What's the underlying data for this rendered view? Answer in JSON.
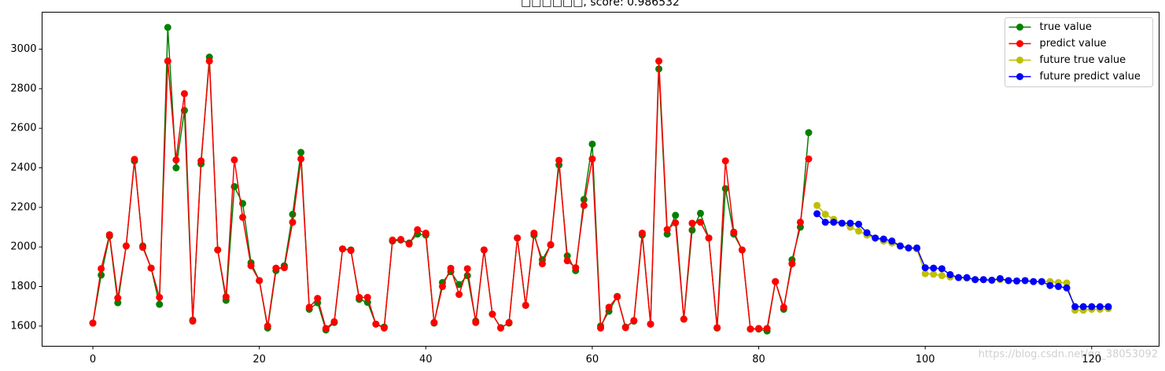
{
  "chart_data": {
    "type": "line",
    "title": "□□□□□□, score: 0.986532",
    "annotation": "https://blog.csdn.net/qq_38053092",
    "xlim": [
      -6.1,
      128.1
    ],
    "xticks": [
      0,
      20,
      40,
      60,
      80,
      100,
      120
    ],
    "ylim": [
      1498,
      3187
    ],
    "yticks": [
      1600,
      1800,
      2000,
      2200,
      2400,
      2600,
      2800,
      3000
    ],
    "grid": false,
    "legend": "upper right",
    "series": [
      {
        "name": "true value",
        "color": "#008000",
        "x": [
          0,
          1,
          2,
          3,
          4,
          5,
          6,
          7,
          8,
          9,
          10,
          11,
          12,
          13,
          14,
          15,
          16,
          17,
          18,
          19,
          20,
          21,
          22,
          23,
          24,
          25,
          26,
          27,
          28,
          29,
          30,
          31,
          32,
          33,
          34,
          35,
          36,
          37,
          38,
          39,
          40,
          41,
          42,
          43,
          44,
          45,
          46,
          47,
          48,
          49,
          50,
          51,
          52,
          53,
          54,
          55,
          56,
          57,
          58,
          59,
          60,
          61,
          62,
          63,
          64,
          65,
          66,
          67,
          68,
          69,
          70,
          71,
          72,
          73,
          74,
          75,
          76,
          77,
          78,
          79,
          80,
          81,
          82,
          83,
          84,
          85,
          86
        ],
        "values": [
          1615,
          1858,
          2055,
          1718,
          2005,
          2435,
          2005,
          1893,
          1710,
          3110,
          2400,
          2690,
          1630,
          2420,
          2960,
          1985,
          1730,
          2305,
          2220,
          1920,
          1830,
          1590,
          1880,
          1905,
          2165,
          2478,
          1685,
          1718,
          1580,
          1618,
          1990,
          1985,
          1735,
          1720,
          1610,
          1595,
          2030,
          2035,
          2020,
          2065,
          2060,
          1615,
          1820,
          1875,
          1810,
          1855,
          1625,
          1985,
          1660,
          1592,
          1615,
          2045,
          1705,
          2060,
          1935,
          2010,
          2415,
          1955,
          1880,
          2240,
          2520,
          1600,
          1675,
          1750,
          1595,
          1625,
          2060,
          1610,
          2900,
          2065,
          2160,
          1635,
          2085,
          2170,
          2045,
          1590,
          2295,
          2065,
          1985,
          1585,
          1585,
          1575,
          1825,
          1685,
          1935,
          2100,
          2578
        ]
      },
      {
        "name": "predict value",
        "color": "#ff0000",
        "x": [
          0,
          1,
          2,
          3,
          4,
          5,
          6,
          7,
          8,
          9,
          10,
          11,
          12,
          13,
          14,
          15,
          16,
          17,
          18,
          19,
          20,
          21,
          22,
          23,
          24,
          25,
          26,
          27,
          28,
          29,
          30,
          31,
          32,
          33,
          34,
          35,
          36,
          37,
          38,
          39,
          40,
          41,
          42,
          43,
          44,
          45,
          46,
          47,
          48,
          49,
          50,
          51,
          52,
          53,
          54,
          55,
          56,
          57,
          58,
          59,
          60,
          61,
          62,
          63,
          64,
          65,
          66,
          67,
          68,
          69,
          70,
          71,
          72,
          73,
          74,
          75,
          76,
          77,
          78,
          79,
          80,
          81,
          82,
          83,
          84,
          85,
          86
        ],
        "values": [
          1615,
          1890,
          2062,
          1742,
          2005,
          2443,
          1998,
          1893,
          1745,
          2940,
          2440,
          2775,
          1625,
          2435,
          2940,
          1985,
          1748,
          2440,
          2150,
          1905,
          1830,
          1600,
          1893,
          1895,
          2125,
          2445,
          1695,
          1740,
          1588,
          1622,
          1990,
          1982,
          1745,
          1745,
          1610,
          1590,
          2035,
          2038,
          2015,
          2087,
          2070,
          1618,
          1800,
          1892,
          1760,
          1890,
          1618,
          1985,
          1660,
          1590,
          1618,
          2045,
          1705,
          2070,
          1915,
          2012,
          2438,
          1930,
          1895,
          2210,
          2445,
          1590,
          1695,
          1748,
          1592,
          1628,
          2070,
          1610,
          2940,
          2088,
          2122,
          1635,
          2120,
          2125,
          2045,
          1592,
          2435,
          2075,
          1985,
          1585,
          1588,
          1588,
          1825,
          1695,
          1915,
          2125,
          2445
        ]
      },
      {
        "name": "future true value",
        "color": "#bfbf00",
        "x": [
          87,
          88,
          89,
          90,
          91,
          92,
          93,
          94,
          95,
          96,
          97,
          98,
          99,
          100,
          101,
          102,
          103,
          104,
          105,
          106,
          107,
          108,
          109,
          110,
          111,
          112,
          113,
          114,
          115,
          116,
          117,
          118,
          119,
          120,
          121,
          122
        ],
        "values": [
          2210,
          2165,
          2140,
          2120,
          2100,
          2080,
          2060,
          2045,
          2030,
          2020,
          2005,
          1995,
          1990,
          1865,
          1862,
          1855,
          1848,
          1845,
          1842,
          1835,
          1835,
          1832,
          1835,
          1830,
          1828,
          1830,
          1825,
          1825,
          1825,
          1820,
          1818,
          1680,
          1680,
          1685,
          1685,
          1688
        ]
      },
      {
        "name": "future predict value",
        "color": "#0000ff",
        "x": [
          87,
          88,
          89,
          90,
          91,
          92,
          93,
          94,
          95,
          96,
          97,
          98,
          99,
          100,
          101,
          102,
          103,
          104,
          105,
          106,
          107,
          108,
          109,
          110,
          111,
          112,
          113,
          114,
          115,
          116,
          117,
          118,
          119,
          120,
          121,
          122
        ],
        "values": [
          2168,
          2125,
          2125,
          2120,
          2120,
          2115,
          2072,
          2045,
          2040,
          2030,
          2005,
          1995,
          1995,
          1895,
          1893,
          1890,
          1860,
          1845,
          1845,
          1835,
          1835,
          1832,
          1840,
          1830,
          1828,
          1830,
          1825,
          1825,
          1805,
          1800,
          1793,
          1698,
          1698,
          1698,
          1698,
          1698
        ]
      }
    ]
  }
}
